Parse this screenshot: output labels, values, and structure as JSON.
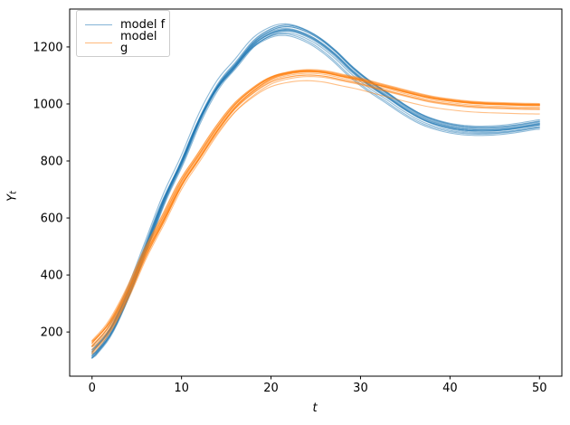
{
  "chart_data": {
    "type": "line",
    "title": "",
    "xlabel": "t",
    "ylabel": "Y_t",
    "ylabel_main": "Y",
    "ylabel_sub": "t",
    "xlim": [
      -2.5,
      52.5
    ],
    "ylim": [
      45,
      1333
    ],
    "xticks": [
      0,
      10,
      20,
      30,
      40,
      50
    ],
    "yticks": [
      200,
      400,
      600,
      800,
      1000,
      1200
    ],
    "grid": false,
    "legend": {
      "position": "upper left",
      "entries": [
        "model f",
        "model g"
      ]
    },
    "ensemble": {
      "n_members_per_series": 14,
      "line_alpha": 0.5,
      "line_width": 1.1,
      "spread": {
        "amplitude_scale": 0.015,
        "vertical_offset": 8,
        "time_shift": 0.3,
        "initial_offset": 20,
        "initial_decay_tau": 7
      }
    },
    "series": [
      {
        "name": "model f",
        "color": "#1f77b4",
        "t": [
          0,
          2,
          4,
          6,
          8,
          10,
          12,
          14,
          16,
          18,
          20,
          21.5,
          23,
          25,
          27,
          29,
          31,
          33,
          35,
          37,
          39,
          41,
          43,
          45,
          47,
          50
        ],
        "y": [
          120,
          200,
          335,
          500,
          665,
          800,
          950,
          1065,
          1140,
          1215,
          1255,
          1266,
          1258,
          1228,
          1180,
          1120,
          1070,
          1028,
          985,
          950,
          928,
          915,
          910,
          911,
          917,
          932
        ],
        "peak": {
          "t": 21.5,
          "y": 1266
        },
        "min_after_peak": {
          "t": 44,
          "y": 910
        },
        "end_value": 932
      },
      {
        "name": "model g",
        "color": "#ff7f0e",
        "t": [
          0,
          2,
          4,
          6,
          8,
          10,
          12,
          14,
          16,
          18,
          20,
          22,
          24,
          26,
          28,
          30,
          32,
          34,
          36,
          38,
          40,
          42,
          44,
          46,
          48,
          50
        ],
        "y": [
          140,
          215,
          330,
          470,
          590,
          715,
          810,
          905,
          985,
          1040,
          1080,
          1098,
          1105,
          1101,
          1088,
          1075,
          1058,
          1042,
          1026,
          1012,
          1003,
          996,
          992,
          990,
          988,
          987
        ],
        "peak": {
          "t": 24,
          "y": 1105
        },
        "end_value": 987
      }
    ],
    "crossing_point": {
      "t": 32,
      "y": 1060
    }
  }
}
